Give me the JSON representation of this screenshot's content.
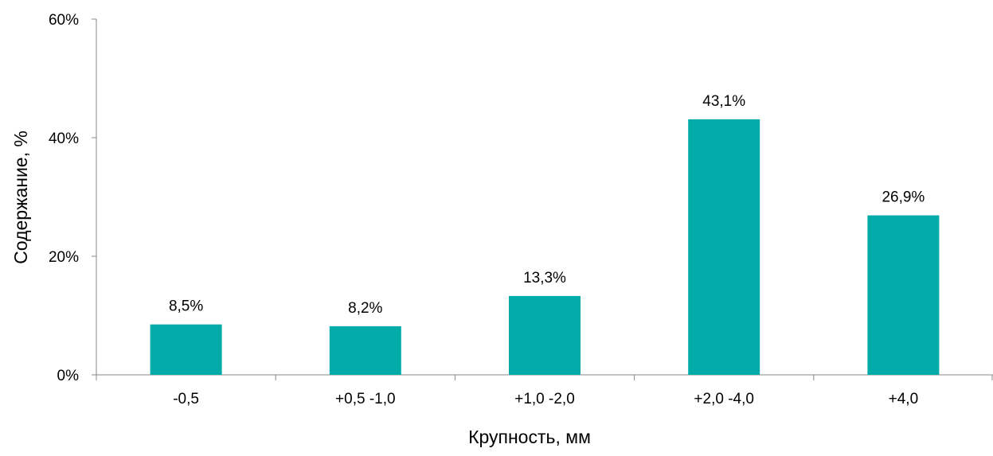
{
  "chart_data": {
    "type": "bar",
    "title": "",
    "xlabel": "Крупность, мм",
    "ylabel": "Содержание, %",
    "categories": [
      "-0,5",
      "+0,5 -1,0",
      "+1,0 -2,0",
      "+2,0 -4,0",
      "+4,0"
    ],
    "values": [
      8.5,
      8.2,
      13.3,
      43.1,
      26.9
    ],
    "data_labels": [
      "8,5%",
      "8,2%",
      "13,3%",
      "43,1%",
      "26,9%"
    ],
    "ylim": [
      0,
      60
    ],
    "yticks": [
      0,
      20,
      40,
      60
    ],
    "ytick_labels": [
      "0%",
      "20%",
      "40%",
      "60%"
    ],
    "grid": false,
    "legend": "none",
    "colors": {
      "bar": "#00ABA8",
      "axis": "#888888"
    }
  }
}
